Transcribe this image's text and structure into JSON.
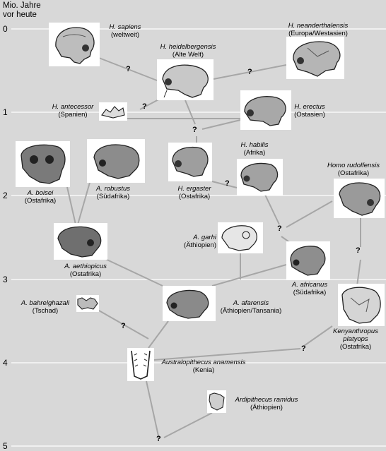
{
  "axis": {
    "title_line1": "Mio. Jahre",
    "title_line2": "vor heute",
    "ticks": [
      "0",
      "1",
      "2",
      "3",
      "4",
      "5"
    ]
  },
  "question_mark": "?",
  "species": {
    "sapiens": {
      "name": "H. sapiens",
      "region": "(weltweit)"
    },
    "heidelbergensis": {
      "name": "H. heidelbergensis",
      "region": "(Alte Welt)"
    },
    "neanderthalensis": {
      "name": "H. neanderthalensis",
      "region": "(Europa/Westasien)"
    },
    "antecessor": {
      "name": "H. antecessor",
      "region": "(Spanien)"
    },
    "erectus": {
      "name": "H. erectus",
      "region": "(Ostasien)"
    },
    "habilis": {
      "name": "H. habilis",
      "region": "(Afrika)"
    },
    "ergaster": {
      "name": "H. ergaster",
      "region": "(Ostafrika)"
    },
    "rudolfensis": {
      "name": "Homo rudolfensis",
      "region": "(Ostafrika)"
    },
    "boisei": {
      "name": "A. boisei",
      "region": "(Ostafrika)"
    },
    "robustus": {
      "name": "A. robustus",
      "region": "(Südafrika)"
    },
    "aethiopicus": {
      "name": "A. aethiopicus",
      "region": "(Ostafrika)"
    },
    "garhi": {
      "name": "A. garhi",
      "region": "(Äthiopien)"
    },
    "africanus": {
      "name": "A. africanus",
      "region": "(Südafrika)"
    },
    "bahrelghazali": {
      "name": "A. bahrelghazali",
      "region": "(Tschad)"
    },
    "afarensis": {
      "name": "A. afarensis",
      "region": "(Äthiopien/Tansania)"
    },
    "kenyanthropus": {
      "name_line1": "Kenyanthropus",
      "name_line2": "platyops",
      "region": "(Ostafrika)"
    },
    "anamensis": {
      "name": "Australopithecus anamensis",
      "region": "(Kenia)"
    },
    "ramidus": {
      "name": "Ardipithecus ramidus",
      "region": "(Äthiopien)"
    }
  }
}
